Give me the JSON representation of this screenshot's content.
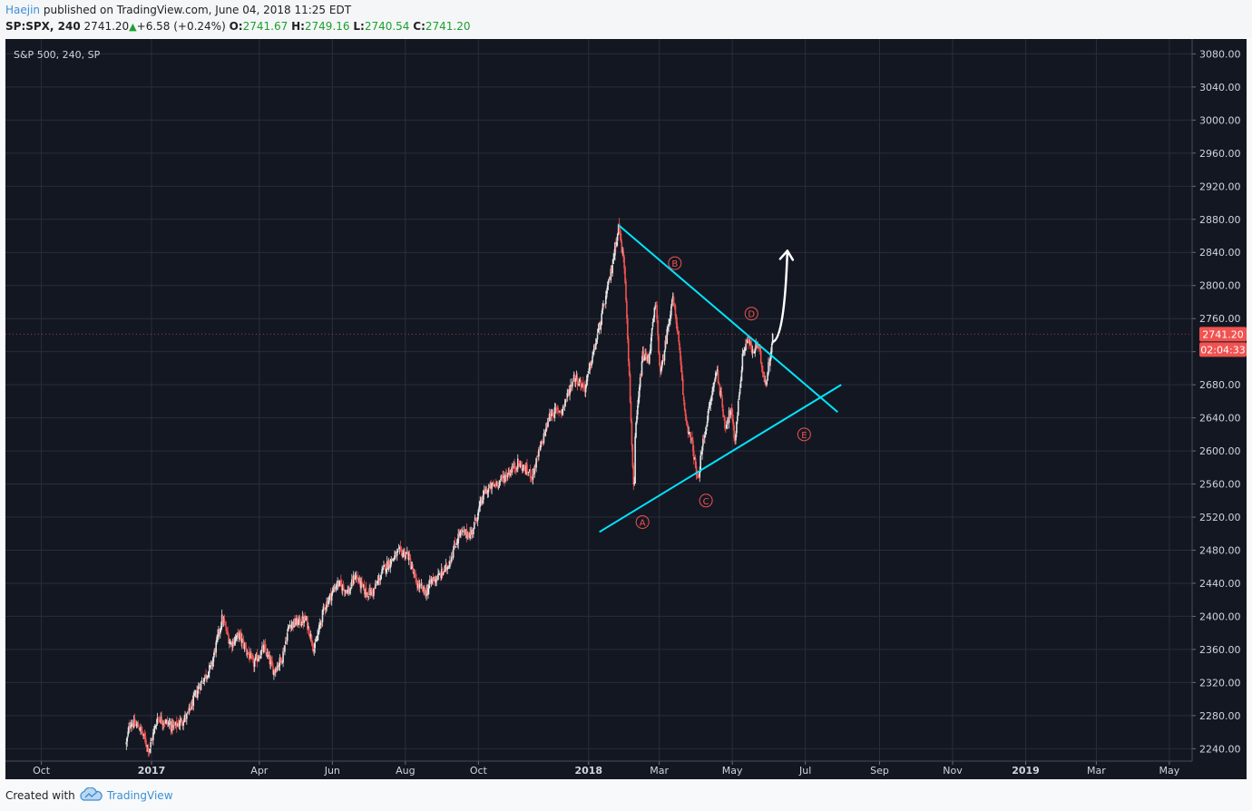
{
  "header": {
    "author": "Haejin",
    "published": " published on TradingView.com, June 04, 2018 11:25 EDT",
    "symbol": "SP:SPX, 240",
    "last": "2741.20",
    "change": "+6.58 (+0.24%)",
    "o_label": "O:",
    "o_value": "2741.67",
    "h_label": "H:",
    "h_value": "2749.16",
    "l_label": "L:",
    "l_value": "2740.54",
    "c_label": "C:",
    "c_value": "2741.20"
  },
  "footer": {
    "created_label": "Created with",
    "brand": "TradingView"
  },
  "chart_data": {
    "type": "candlestick",
    "title": "S&P 500, 240, SP",
    "ylim": [
      2225,
      3098
    ],
    "y_ticks": [
      "2240.00",
      "2280.00",
      "2320.00",
      "2360.00",
      "2400.00",
      "2440.00",
      "2480.00",
      "2520.00",
      "2560.00",
      "2600.00",
      "2640.00",
      "2680.00",
      "2720.00",
      "2760.00",
      "2800.00",
      "2840.00",
      "2880.00",
      "2920.00",
      "2960.00",
      "3000.00",
      "3040.00",
      "3080.00"
    ],
    "x_ticks": [
      {
        "label": "Oct",
        "date": "2016-10-01",
        "bold": false
      },
      {
        "label": "2017",
        "date": "2017-01-01",
        "bold": true
      },
      {
        "label": "Apr",
        "date": "2017-04-01",
        "bold": false
      },
      {
        "label": "Jun",
        "date": "2017-06-01",
        "bold": false
      },
      {
        "label": "Aug",
        "date": "2017-08-01",
        "bold": false
      },
      {
        "label": "Oct",
        "date": "2017-10-01",
        "bold": false
      },
      {
        "label": "2018",
        "date": "2018-01-01",
        "bold": true
      },
      {
        "label": "Mar",
        "date": "2018-03-01",
        "bold": false
      },
      {
        "label": "May",
        "date": "2018-05-01",
        "bold": false
      },
      {
        "label": "Jul",
        "date": "2018-07-01",
        "bold": false
      },
      {
        "label": "Sep",
        "date": "2018-09-01",
        "bold": false
      },
      {
        "label": "Nov",
        "date": "2018-11-01",
        "bold": false
      },
      {
        "label": "2019",
        "date": "2019-01-01",
        "bold": true
      },
      {
        "label": "Mar",
        "date": "2019-03-01",
        "bold": false
      },
      {
        "label": "May",
        "date": "2019-05-01",
        "bold": false
      }
    ],
    "xlim": [
      "2016-09-01",
      "2019-05-20"
    ],
    "price_path": [
      [
        "2016-12-11",
        2246
      ],
      [
        "2016-12-14",
        2272
      ],
      [
        "2016-12-22",
        2266
      ],
      [
        "2016-12-30",
        2238
      ],
      [
        "2017-01-06",
        2278
      ],
      [
        "2017-01-20",
        2266
      ],
      [
        "2017-01-31",
        2280
      ],
      [
        "2017-02-10",
        2316
      ],
      [
        "2017-02-20",
        2340
      ],
      [
        "2017-03-01",
        2398
      ],
      [
        "2017-03-08",
        2366
      ],
      [
        "2017-03-15",
        2378
      ],
      [
        "2017-03-27",
        2342
      ],
      [
        "2017-04-05",
        2362
      ],
      [
        "2017-04-13",
        2334
      ],
      [
        "2017-04-20",
        2350
      ],
      [
        "2017-04-26",
        2390
      ],
      [
        "2017-05-10",
        2396
      ],
      [
        "2017-05-17",
        2360
      ],
      [
        "2017-05-25",
        2410
      ],
      [
        "2017-06-05",
        2440
      ],
      [
        "2017-06-15",
        2430
      ],
      [
        "2017-06-20",
        2450
      ],
      [
        "2017-06-29",
        2428
      ],
      [
        "2017-07-05",
        2430
      ],
      [
        "2017-07-15",
        2460
      ],
      [
        "2017-07-27",
        2478
      ],
      [
        "2017-08-03",
        2475
      ],
      [
        "2017-08-10",
        2440
      ],
      [
        "2017-08-18",
        2428
      ],
      [
        "2017-08-23",
        2444
      ],
      [
        "2017-08-29",
        2448
      ],
      [
        "2017-09-05",
        2460
      ],
      [
        "2017-09-15",
        2500
      ],
      [
        "2017-09-25",
        2500
      ],
      [
        "2017-10-06",
        2550
      ],
      [
        "2017-10-20",
        2565
      ],
      [
        "2017-11-03",
        2585
      ],
      [
        "2017-11-15",
        2570
      ],
      [
        "2017-11-30",
        2645
      ],
      [
        "2017-12-10",
        2650
      ],
      [
        "2017-12-20",
        2690
      ],
      [
        "2017-12-29",
        2676
      ],
      [
        "2018-01-10",
        2750
      ],
      [
        "2018-01-19",
        2810
      ],
      [
        "2018-01-26",
        2872
      ],
      [
        "2018-01-31",
        2822
      ],
      [
        "2018-02-02",
        2762
      ],
      [
        "2018-02-05",
        2650
      ],
      [
        "2018-02-08",
        2540
      ],
      [
        "2018-02-09",
        2620
      ],
      [
        "2018-02-15",
        2715
      ],
      [
        "2018-02-20",
        2710
      ],
      [
        "2018-02-26",
        2780
      ],
      [
        "2018-03-02",
        2690
      ],
      [
        "2018-03-12",
        2786
      ],
      [
        "2018-03-16",
        2750
      ],
      [
        "2018-03-22",
        2650
      ],
      [
        "2018-03-26",
        2620
      ],
      [
        "2018-03-29",
        2605
      ],
      [
        "2018-04-02",
        2560
      ],
      [
        "2018-04-06",
        2606
      ],
      [
        "2018-04-09",
        2630
      ],
      [
        "2018-04-18",
        2700
      ],
      [
        "2018-04-25",
        2630
      ],
      [
        "2018-04-30",
        2650
      ],
      [
        "2018-05-03",
        2610
      ],
      [
        "2018-05-10",
        2720
      ],
      [
        "2018-05-14",
        2735
      ],
      [
        "2018-05-18",
        2718
      ],
      [
        "2018-05-22",
        2730
      ],
      [
        "2018-05-29",
        2680
      ],
      [
        "2018-06-04",
        2741
      ]
    ],
    "annotations": {
      "trendlines": [
        {
          "name": "upper-trendline",
          "from": [
            "2018-01-26",
            2873
          ],
          "to": [
            "2018-07-28",
            2647
          ],
          "color": "#00e5ff"
        },
        {
          "name": "lower-trendline",
          "from": [
            "2018-01-10",
            2502
          ],
          "to": [
            "2018-07-31",
            2680
          ],
          "color": "#00e5ff"
        }
      ],
      "wave_labels": [
        {
          "text": "A",
          "date": "2018-02-15",
          "price": 2514
        },
        {
          "text": "B",
          "date": "2018-03-14",
          "price": 2827
        },
        {
          "text": "C",
          "date": "2018-04-09",
          "price": 2540
        },
        {
          "text": "D",
          "date": "2018-05-17",
          "price": 2766
        },
        {
          "text": "E",
          "date": "2018-06-30",
          "price": 2620
        }
      ],
      "arrow": {
        "from": [
          "2018-06-04",
          2732
        ],
        "to": [
          "2018-06-16",
          2842
        ],
        "color": "#ffffff"
      }
    },
    "last_price": {
      "value": 2741.2,
      "label": "2741.20",
      "countdown": "02:04:33",
      "color": "#f05350"
    },
    "colors": {
      "background": "#131722",
      "grid": "#2a2e39",
      "up": "#e3e3e3",
      "down": "#f05350",
      "axis_text": "#d1d4dc",
      "annotation": "#f05350"
    }
  }
}
